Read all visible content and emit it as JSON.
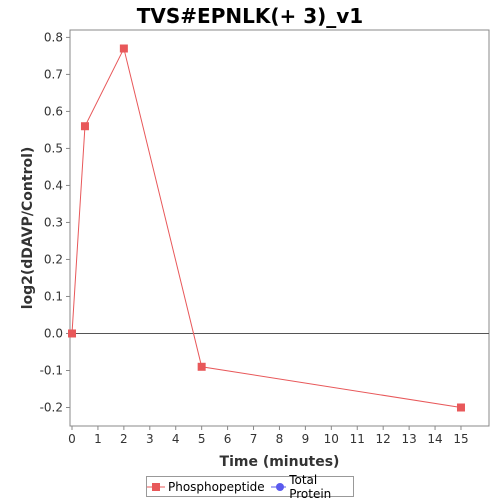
{
  "chart_data": {
    "type": "line",
    "title": "TVS#EPNLK(+ 3)_v1",
    "xlabel": "Time (minutes)",
    "ylabel": "log2(dDAVP/Control)",
    "xlim": [
      0,
      16
    ],
    "ylim": [
      -0.25,
      0.82
    ],
    "x_ticks": [
      "0",
      "1",
      "2",
      "3",
      "4",
      "5",
      "6",
      "7",
      "8",
      "9",
      "10",
      "11",
      "12",
      "13",
      "14",
      "15"
    ],
    "y_ticks": [
      "0.8",
      "0.7",
      "0.6",
      "0.5",
      "0.4",
      "0.3",
      "0.2",
      "0.1",
      "0.0",
      "-0.1",
      "-0.2"
    ],
    "grid": false,
    "series": [
      {
        "name": "Phosphopeptide",
        "color": "#e8585a",
        "marker": "square",
        "points": [
          {
            "x": 0,
            "y": 0.0
          },
          {
            "x": 0.5,
            "y": 0.56
          },
          {
            "x": 2,
            "y": 0.77
          },
          {
            "x": 5,
            "y": -0.09
          },
          {
            "x": 15,
            "y": -0.2
          }
        ]
      },
      {
        "name": "Total Protein",
        "color": "#5a5aee",
        "marker": "circle",
        "points": []
      }
    ],
    "legend_position": "bottom"
  }
}
